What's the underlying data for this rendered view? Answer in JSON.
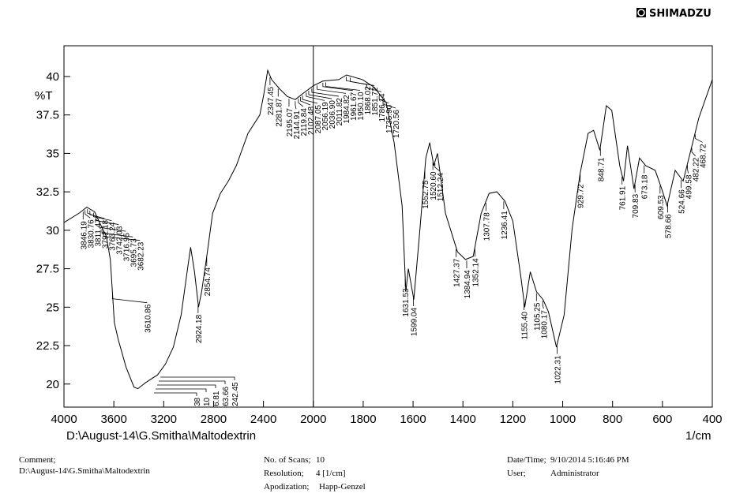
{
  "header": {
    "brand": "SHIMADZU"
  },
  "chart_data": {
    "type": "line",
    "x_label": "1/cm",
    "y_label": "%T",
    "file_path": "D:\\August-14\\G.Smitha\\Maltodextrin",
    "xlim": [
      4000,
      400
    ],
    "ylim": [
      18.5,
      42
    ],
    "x_break": 2000,
    "x_break_scale": 2,
    "xticks": [
      4000,
      3600,
      3200,
      2800,
      2400,
      2000,
      1800,
      1600,
      1400,
      1200,
      1000,
      800,
      600,
      400
    ],
    "yticks": [
      20,
      22.5,
      25,
      27.5,
      30,
      32.5,
      35,
      37.5,
      40
    ],
    "series": [
      {
        "color": "#000000",
        "x": [
          4000,
          3880,
          3817,
          3754,
          3691,
          3660,
          3628,
          3596,
          3565,
          3502,
          3438,
          3407,
          3344,
          3249,
          3186,
          3123,
          3060,
          3009,
          2984,
          2953,
          2921,
          2896,
          2858,
          2808,
          2745,
          2681,
          2618,
          2524,
          2429,
          2398,
          2366,
          2334,
          2271,
          2208,
          2145,
          2082,
          2000,
          1962,
          1898,
          1867,
          1803,
          1756,
          1708,
          1676,
          1644,
          1629,
          1619,
          1597,
          1575,
          1549,
          1533,
          1517,
          1502,
          1470,
          1422,
          1390,
          1359,
          1327,
          1295,
          1264,
          1232,
          1200,
          1168,
          1152,
          1130,
          1105,
          1079,
          1057,
          1025,
          994,
          962,
          930,
          898,
          876,
          851,
          825,
          803,
          771,
          756,
          740,
          714,
          692,
          667,
          629,
          603,
          581,
          549,
          517,
          486,
          454,
          422,
          400
        ],
        "values": [
          30.5,
          31.1,
          31.5,
          31.2,
          30.1,
          29.6,
          28.1,
          24,
          22.9,
          21.1,
          19.8,
          19.7,
          20.1,
          20.6,
          21.3,
          22.4,
          24.5,
          27.5,
          28.9,
          27.3,
          25,
          26,
          28.1,
          31.1,
          32.4,
          33.2,
          34.2,
          36.3,
          37.5,
          38.8,
          40.4,
          39.8,
          39.2,
          38.7,
          38.5,
          38.9,
          39.4,
          39.7,
          39.8,
          40.1,
          39.8,
          39.3,
          38.3,
          35.7,
          31.6,
          26,
          27.5,
          25.5,
          29.6,
          34.7,
          35.7,
          34.2,
          35,
          31.1,
          28.6,
          28.1,
          28.3,
          31.1,
          32.4,
          32.5,
          31.9,
          30.6,
          27,
          25,
          27.3,
          26,
          25.5,
          24.7,
          22.4,
          24.5,
          30.1,
          33.7,
          36.3,
          36.5,
          35.2,
          38.1,
          37.8,
          34.2,
          33.2,
          35.5,
          32.7,
          34.7,
          34.2,
          33.9,
          32.7,
          31.6,
          33.9,
          33.2,
          35.2,
          37.3,
          38.8,
          39.8
        ]
      }
    ],
    "peaks": [
      3846.19,
      3830.76,
      3811.47,
      3792.18,
      3763.24,
      3742.03,
      3716.95,
      3695.73,
      3682.23,
      3610.86,
      2924.18,
      2854.74,
      2347.45,
      2281.87,
      2195.07,
      2144.91,
      2119.84,
      2102.48,
      2087.05,
      2056.19,
      2036.9,
      2011.82,
      1984.82,
      1961.67,
      1950.1,
      1868.02,
      1851.72,
      1786.14,
      1735.9,
      1720.56,
      1631.53,
      1599.04,
      1552.75,
      1520.6,
      1512.24,
      1427.37,
      1384.94,
      1352.14,
      1307.78,
      1236.41,
      1155.4,
      1105.25,
      1080.17,
      1022.31,
      929.72,
      848.71,
      761.91,
      709.83,
      673.18,
      609.53,
      578.66,
      524.66,
      499.58,
      482.22,
      468.72
    ],
    "peak_labels": [
      "3846.19",
      "3830.76",
      "3811.47",
      "3792.18",
      "3763.24",
      "3742.03",
      "3716.95",
      "3695.73",
      "3682.23",
      "3610.86",
      "2924.18",
      "2854.74",
      "2347.45",
      "2281.87",
      "2195.07",
      "2144.91",
      "2119.84",
      "2102.48",
      "2087.05",
      "2056.19",
      "2036.90",
      "2011.82",
      "1984.82",
      "1961.67",
      "1950.10",
      "1868.02",
      "1851.72",
      "1786.14",
      "1735.90",
      "1720.56",
      "1631.53",
      "1599.04",
      "1552.75",
      "1520.60",
      "1512.24",
      "1427.37",
      "1384.94",
      "1352.14",
      "1307.78",
      "1236.41",
      "1155.40",
      "1105.25",
      "1080.17",
      "1022.31",
      "929.72",
      "848.71",
      "761.91",
      "709.83",
      "673.18",
      "609.53",
      "578.66",
      "524.66",
      "499.58",
      "482.22",
      "468.72"
    ],
    "truncated_labels": [
      "38",
      "10",
      "6.81",
      "63.66",
      "242.45"
    ]
  },
  "footer": {
    "comment_label": "Comment;",
    "comment": "D:\\August-14\\G.Smitha\\Maltodextrin",
    "scans_label": "No. of Scans;",
    "scans": "10",
    "resolution_label": "Resolution;",
    "resolution": "4 [1/cm]",
    "apodization_label": "Apodization;",
    "apodization": "Happ-Genzel",
    "datetime_label": "Date/Time;",
    "datetime": "9/10/2014 5:16:46 PM",
    "user_label": "User;",
    "user": "Administrator"
  }
}
